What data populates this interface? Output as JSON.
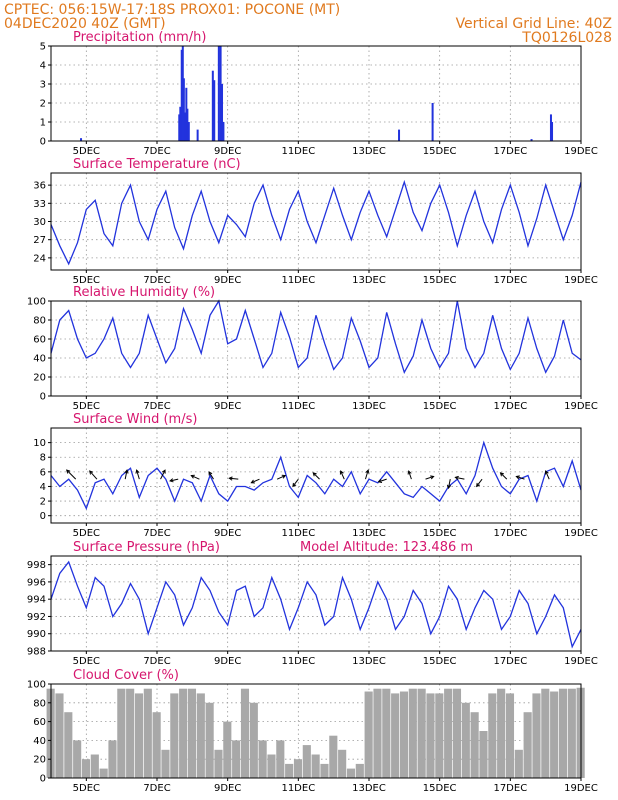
{
  "header": {
    "left_line1": "CPTEC:   056:15W-17:18S   PROX01: POCONE (MT)",
    "left_line2": "04DEC2020 40Z (GMT)",
    "right_line1": "Vertical Grid Line: 40Z",
    "right_line2": "TQ0126L028"
  },
  "x_axis": {
    "ticks": [
      {
        "day": 5,
        "label": "5DEC"
      },
      {
        "day": 7,
        "label": "7DEC"
      },
      {
        "day": 9,
        "label": "9DEC"
      },
      {
        "day": 11,
        "label": "11DEC"
      },
      {
        "day": 13,
        "label": "13DEC"
      },
      {
        "day": 15,
        "label": "15DEC"
      },
      {
        "day": 17,
        "label": "17DEC"
      },
      {
        "day": 19,
        "label": "19DEC"
      }
    ],
    "range": [
      4.0,
      19.0
    ]
  },
  "colors": {
    "line": "#2233dd",
    "bar": "#2233dd",
    "cloud": "#a8a8a8",
    "header": "#e07a1f",
    "title": "#d6166e"
  },
  "chart_data": [
    {
      "id": "precip",
      "type": "bar",
      "title": "Precipitation (mm/h)",
      "ylim": [
        0,
        5
      ],
      "yticks": [
        0,
        1,
        2,
        3,
        4,
        5
      ],
      "grid": true,
      "x": [
        4.85,
        7.63,
        7.66,
        7.7,
        7.73,
        7.76,
        7.8,
        7.83,
        7.86,
        7.9,
        8.15,
        8.58,
        8.62,
        8.75,
        8.8,
        8.84,
        8.88,
        13.85,
        14.8,
        17.6,
        18.15,
        18.18
      ],
      "values": [
        0.15,
        1.4,
        1.8,
        4.8,
        5.0,
        3.3,
        1.5,
        2.8,
        1.7,
        1.0,
        0.6,
        3.7,
        3.2,
        5.0,
        5.0,
        3.0,
        1.0,
        0.6,
        2.0,
        0.1,
        1.4,
        1.0
      ]
    },
    {
      "id": "temp",
      "type": "line",
      "title": "Surface Temperature (nC)",
      "ylim": [
        22,
        38
      ],
      "yticks": [
        24,
        27,
        30,
        33,
        36
      ],
      "grid": true,
      "x": [
        4.0,
        4.25,
        4.5,
        4.75,
        5.0,
        5.25,
        5.5,
        5.75,
        6.0,
        6.25,
        6.5,
        6.75,
        7.0,
        7.25,
        7.5,
        7.75,
        8.0,
        8.25,
        8.5,
        8.75,
        9.0,
        9.25,
        9.5,
        9.75,
        10.0,
        10.25,
        10.5,
        10.75,
        11.0,
        11.25,
        11.5,
        11.75,
        12.0,
        12.25,
        12.5,
        12.75,
        13.0,
        13.25,
        13.5,
        13.75,
        14.0,
        14.25,
        14.5,
        14.75,
        15.0,
        15.25,
        15.5,
        15.75,
        16.0,
        16.25,
        16.5,
        16.75,
        17.0,
        17.25,
        17.5,
        17.75,
        18.0,
        18.25,
        18.5,
        18.75,
        19.0
      ],
      "values": [
        29.5,
        26.0,
        23.0,
        26.5,
        32.0,
        33.5,
        28.0,
        26.0,
        33.0,
        36.0,
        30.0,
        27.0,
        32.0,
        35.0,
        29.0,
        25.5,
        31.0,
        35.0,
        30.0,
        26.5,
        31.0,
        29.5,
        27.5,
        33.0,
        36.0,
        31.0,
        27.0,
        32.0,
        35.0,
        30.0,
        26.5,
        31.0,
        35.5,
        31.0,
        27.0,
        31.5,
        35.0,
        31.0,
        27.5,
        32.0,
        36.5,
        31.5,
        28.5,
        33.0,
        36.0,
        31.5,
        26.0,
        31.0,
        35.0,
        30.0,
        26.5,
        32.0,
        36.0,
        31.5,
        26.0,
        30.5,
        36.0,
        31.5,
        27.0,
        31.0,
        36.5
      ]
    },
    {
      "id": "rh",
      "type": "line",
      "title": "Relative Humidity (%)",
      "ylim": [
        0,
        100
      ],
      "yticks": [
        0,
        20,
        40,
        60,
        80,
        100
      ],
      "grid": true,
      "x": [
        4.0,
        4.25,
        4.5,
        4.75,
        5.0,
        5.25,
        5.5,
        5.75,
        6.0,
        6.25,
        6.5,
        6.75,
        7.0,
        7.25,
        7.5,
        7.75,
        8.0,
        8.25,
        8.5,
        8.75,
        9.0,
        9.25,
        9.5,
        9.75,
        10.0,
        10.25,
        10.5,
        10.75,
        11.0,
        11.25,
        11.5,
        11.75,
        12.0,
        12.25,
        12.5,
        12.75,
        13.0,
        13.25,
        13.5,
        13.75,
        14.0,
        14.25,
        14.5,
        14.75,
        15.0,
        15.25,
        15.5,
        15.75,
        16.0,
        16.25,
        16.5,
        16.75,
        17.0,
        17.25,
        17.5,
        17.75,
        18.0,
        18.25,
        18.5,
        18.75,
        19.0
      ],
      "values": [
        45.0,
        80.0,
        90.0,
        60.0,
        40.0,
        45.0,
        60.0,
        82.0,
        45.0,
        30.0,
        45.0,
        85.0,
        60.0,
        35.0,
        50.0,
        92.0,
        70.0,
        45.0,
        85.0,
        100.0,
        55.0,
        60.0,
        90.0,
        60.0,
        30.0,
        45.0,
        88.0,
        62.0,
        30.0,
        40.0,
        85.0,
        55.0,
        28.0,
        40.0,
        82.0,
        58.0,
        30.0,
        40.0,
        88.0,
        55.0,
        25.0,
        42.0,
        80.0,
        50.0,
        30.0,
        45.0,
        100.0,
        50.0,
        30.0,
        45.0,
        85.0,
        50.0,
        28.0,
        45.0,
        82.0,
        50.0,
        25.0,
        42.0,
        80.0,
        45.0,
        38.0
      ]
    },
    {
      "id": "wind",
      "type": "line",
      "title": "Surface Wind (m/s)",
      "ylim": [
        -1,
        12
      ],
      "yticks": [
        0,
        2,
        4,
        6,
        8,
        10
      ],
      "grid": true,
      "x": [
        4.0,
        4.25,
        4.5,
        4.75,
        5.0,
        5.25,
        5.5,
        5.75,
        6.0,
        6.25,
        6.5,
        6.75,
        7.0,
        7.25,
        7.5,
        7.75,
        8.0,
        8.25,
        8.5,
        8.75,
        9.0,
        9.25,
        9.5,
        9.75,
        10.0,
        10.25,
        10.5,
        10.75,
        11.0,
        11.25,
        11.5,
        11.75,
        12.0,
        12.25,
        12.5,
        12.75,
        13.0,
        13.25,
        13.5,
        13.75,
        14.0,
        14.25,
        14.5,
        14.75,
        15.0,
        15.25,
        15.5,
        15.75,
        16.0,
        16.25,
        16.5,
        16.75,
        17.0,
        17.25,
        17.5,
        17.75,
        18.0,
        18.25,
        18.5,
        18.75,
        19.0
      ],
      "values": [
        5.5,
        4.0,
        5.0,
        3.5,
        1.0,
        4.5,
        5.0,
        3.0,
        5.5,
        6.5,
        2.5,
        5.5,
        6.5,
        5.0,
        2.0,
        5.0,
        4.5,
        2.0,
        5.5,
        3.0,
        2.0,
        4.0,
        4.0,
        3.5,
        4.5,
        5.0,
        8.0,
        4.0,
        2.5,
        5.5,
        4.5,
        3.0,
        5.0,
        4.0,
        6.0,
        3.0,
        5.0,
        4.5,
        6.0,
        4.5,
        3.0,
        2.5,
        4.0,
        3.0,
        2.0,
        4.0,
        5.0,
        3.0,
        5.5,
        10.0,
        6.5,
        4.0,
        3.0,
        5.0,
        5.5,
        2.0,
        6.0,
        6.5,
        4.0,
        7.5,
        3.5
      ],
      "arrows": [
        {
          "x": 4.7,
          "u": -1,
          "v": 1
        },
        {
          "x": 5.3,
          "u": -0.8,
          "v": 0.9
        },
        {
          "x": 6.1,
          "u": 0.2,
          "v": 1
        },
        {
          "x": 6.5,
          "u": -0.3,
          "v": 1
        },
        {
          "x": 7.1,
          "u": 0.5,
          "v": 1
        },
        {
          "x": 7.6,
          "u": -0.9,
          "v": -0.2
        },
        {
          "x": 8.2,
          "u": -0.9,
          "v": 0.4
        },
        {
          "x": 8.6,
          "u": -0.5,
          "v": 0.8
        },
        {
          "x": 9.3,
          "u": -1,
          "v": 0.1
        },
        {
          "x": 9.9,
          "u": -0.9,
          "v": -0.4
        },
        {
          "x": 10.4,
          "u": 0.9,
          "v": 0.4
        },
        {
          "x": 11.0,
          "u": -0.6,
          "v": -0.8
        },
        {
          "x": 11.6,
          "u": -0.7,
          "v": 0.7
        },
        {
          "x": 12.3,
          "u": -0.4,
          "v": 0.9
        },
        {
          "x": 12.9,
          "u": 0.3,
          "v": 1
        },
        {
          "x": 13.5,
          "u": -0.9,
          "v": -0.3
        },
        {
          "x": 14.2,
          "u": -0.3,
          "v": 0.9
        },
        {
          "x": 14.6,
          "u": 0.9,
          "v": 0.3
        },
        {
          "x": 15.3,
          "u": -0.2,
          "v": -1
        },
        {
          "x": 15.7,
          "u": -1,
          "v": 0.2
        },
        {
          "x": 16.2,
          "u": -0.6,
          "v": -0.8
        },
        {
          "x": 16.9,
          "u": -0.7,
          "v": 0.7
        },
        {
          "x": 17.4,
          "u": -0.9,
          "v": 0.3
        },
        {
          "x": 18.1,
          "u": -0.4,
          "v": 0.9
        }
      ]
    },
    {
      "id": "pressure",
      "type": "line",
      "title": "Surface Pressure (hPa)",
      "annotation": "Model Altitude: 123.486 m",
      "ylim": [
        988,
        999
      ],
      "yticks": [
        988,
        990,
        992,
        994,
        996,
        998
      ],
      "grid": true,
      "x": [
        4.0,
        4.25,
        4.5,
        4.75,
        5.0,
        5.25,
        5.5,
        5.75,
        6.0,
        6.25,
        6.5,
        6.75,
        7.0,
        7.25,
        7.5,
        7.75,
        8.0,
        8.25,
        8.5,
        8.75,
        9.0,
        9.25,
        9.5,
        9.75,
        10.0,
        10.25,
        10.5,
        10.75,
        11.0,
        11.25,
        11.5,
        11.75,
        12.0,
        12.25,
        12.5,
        12.75,
        13.0,
        13.25,
        13.5,
        13.75,
        14.0,
        14.25,
        14.5,
        14.75,
        15.0,
        15.25,
        15.5,
        15.75,
        16.0,
        16.25,
        16.5,
        16.75,
        17.0,
        17.25,
        17.5,
        17.75,
        18.0,
        18.25,
        18.5,
        18.75,
        19.0
      ],
      "values": [
        994.0,
        997.0,
        998.3,
        995.5,
        993.0,
        996.5,
        995.5,
        992.0,
        993.5,
        995.8,
        994.0,
        990.0,
        993.0,
        996.0,
        994.5,
        991.0,
        993.0,
        996.5,
        995.0,
        992.5,
        991.0,
        995.0,
        995.5,
        992.0,
        993.0,
        996.5,
        994.0,
        990.5,
        993.0,
        996.0,
        994.5,
        991.0,
        992.0,
        996.5,
        994.0,
        990.5,
        993.0,
        996.0,
        994.0,
        990.5,
        992.0,
        995.0,
        993.5,
        990.0,
        992.0,
        995.5,
        994.0,
        990.5,
        993.0,
        995.0,
        994.0,
        990.5,
        992.0,
        995.0,
        993.5,
        990.0,
        992.0,
        994.5,
        993.0,
        988.5,
        990.5
      ]
    },
    {
      "id": "cloud",
      "type": "area",
      "title": "Cloud Cover (%)",
      "ylim": [
        0,
        100
      ],
      "yticks": [
        0,
        20,
        40,
        60,
        80,
        100
      ],
      "grid": true,
      "x": [
        4.0,
        4.25,
        4.5,
        4.75,
        5.0,
        5.25,
        5.5,
        5.75,
        6.0,
        6.25,
        6.5,
        6.75,
        7.0,
        7.25,
        7.5,
        7.75,
        8.0,
        8.25,
        8.5,
        8.75,
        9.0,
        9.25,
        9.5,
        9.75,
        10.0,
        10.25,
        10.5,
        10.75,
        11.0,
        11.25,
        11.5,
        11.75,
        12.0,
        12.25,
        12.5,
        12.75,
        13.0,
        13.25,
        13.5,
        13.75,
        14.0,
        14.25,
        14.5,
        14.75,
        15.0,
        15.25,
        15.5,
        15.75,
        16.0,
        16.25,
        16.5,
        16.75,
        17.0,
        17.25,
        17.5,
        17.75,
        18.0,
        18.25,
        18.5,
        18.75,
        19.0
      ],
      "values": [
        95,
        90,
        70,
        40,
        20,
        25,
        10,
        40,
        95,
        95,
        90,
        95,
        70,
        30,
        90,
        95,
        95,
        90,
        80,
        30,
        60,
        40,
        95,
        80,
        40,
        25,
        40,
        15,
        20,
        35,
        25,
        15,
        45,
        30,
        10,
        15,
        92,
        95,
        95,
        90,
        92,
        95,
        95,
        90,
        90,
        95,
        95,
        80,
        70,
        50,
        90,
        95,
        90,
        30,
        70,
        90,
        95,
        92,
        95,
        95,
        96
      ]
    }
  ]
}
